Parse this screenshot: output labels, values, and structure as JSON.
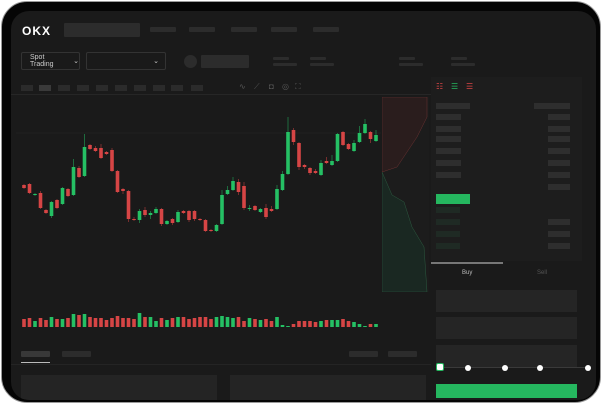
{
  "brand": {
    "logo_text": "OKX"
  },
  "toolbar": {
    "market_selector": "Spot Trading",
    "pair_selector": ""
  },
  "order_panel": {
    "buy_tab": "Buy",
    "sell_tab": "Sell",
    "buy_color": "#25b75f",
    "sell_color": "#d64545",
    "slider_value_percent": 0,
    "slider_stops": [
      0,
      25,
      50,
      75,
      100
    ]
  },
  "icons": [
    "orderbook-both-icon",
    "orderbook-bids-icon",
    "orderbook-asks-icon",
    "chevron-down-icon",
    "indicator-icon",
    "ruler-icon",
    "camera-icon",
    "settings-icon",
    "fullscreen-icon"
  ],
  "chart_data": {
    "type": "candlestick",
    "colors": {
      "up": "#25c064",
      "down": "#d64545"
    },
    "candles": [
      [
        67,
        64,
        68,
        63
      ],
      [
        68,
        59,
        69,
        58
      ],
      [
        57,
        58,
        59,
        56
      ],
      [
        59,
        44,
        61,
        43
      ],
      [
        42,
        39,
        43,
        38
      ],
      [
        36,
        50,
        51,
        34
      ],
      [
        52,
        44,
        53,
        43
      ],
      [
        48,
        64,
        65,
        47
      ],
      [
        63,
        56,
        64,
        55
      ],
      [
        57,
        85,
        93,
        56
      ],
      [
        84,
        75,
        86,
        74
      ],
      [
        76,
        105,
        118,
        75
      ],
      [
        107,
        103,
        108,
        102
      ],
      [
        104,
        101,
        106,
        100
      ],
      [
        104,
        94,
        108,
        93
      ],
      [
        100,
        98,
        101,
        97
      ],
      [
        102,
        81,
        104,
        80
      ],
      [
        81,
        60,
        82,
        59
      ],
      [
        63,
        61,
        64,
        58
      ],
      [
        61,
        33,
        62,
        30
      ],
      [
        33,
        32,
        35,
        31
      ],
      [
        32,
        41,
        43,
        29
      ],
      [
        42,
        37,
        45,
        35
      ],
      [
        37,
        39,
        41,
        33
      ],
      [
        39,
        43,
        45,
        38
      ],
      [
        43,
        28,
        44,
        26
      ],
      [
        28,
        31,
        32,
        27
      ],
      [
        33,
        29,
        34,
        27
      ],
      [
        30,
        40,
        42,
        29
      ],
      [
        41,
        39,
        42,
        38
      ],
      [
        41,
        32,
        42,
        30
      ],
      [
        41,
        33,
        42,
        31
      ],
      [
        33,
        32,
        34,
        31
      ],
      [
        32,
        21,
        33,
        20
      ],
      [
        22,
        21,
        23,
        20
      ],
      [
        21,
        27,
        28,
        20
      ],
      [
        28,
        57,
        62,
        27
      ],
      [
        58,
        62,
        66,
        57
      ],
      [
        62,
        71,
        75,
        61
      ],
      [
        70,
        60,
        73,
        57
      ],
      [
        66,
        44,
        70,
        42
      ],
      [
        43,
        44,
        47,
        41
      ],
      [
        46,
        42,
        47,
        41
      ],
      [
        40,
        43,
        44,
        39
      ],
      [
        44,
        35,
        48,
        33
      ],
      [
        43,
        41,
        46,
        40
      ],
      [
        43,
        63,
        67,
        42
      ],
      [
        62,
        78,
        81,
        61
      ],
      [
        78,
        120,
        135,
        77
      ],
      [
        122,
        110,
        124,
        107
      ],
      [
        109,
        85,
        110,
        82
      ],
      [
        87,
        85,
        88,
        83
      ],
      [
        84,
        79,
        85,
        77
      ],
      [
        81,
        79,
        83,
        78
      ],
      [
        77,
        89,
        92,
        76
      ],
      [
        91,
        89,
        95,
        88
      ],
      [
        87,
        91,
        97,
        86
      ],
      [
        91,
        118,
        119,
        90
      ],
      [
        120,
        107,
        121,
        106
      ],
      [
        108,
        103,
        109,
        102
      ],
      [
        101,
        109,
        112,
        100
      ],
      [
        110,
        119,
        126,
        109
      ],
      [
        119,
        128,
        133,
        118
      ],
      [
        120,
        113,
        121,
        109
      ],
      [
        111,
        117,
        122,
        110
      ]
    ],
    "volume": [
      8,
      9,
      6,
      9,
      7,
      10,
      8,
      8,
      9,
      13,
      12,
      13,
      10,
      9,
      9,
      7,
      9,
      11,
      9,
      9,
      8,
      14,
      10,
      10,
      6,
      9,
      7,
      9,
      10,
      10,
      8,
      9,
      10,
      10,
      8,
      10,
      11,
      10,
      9,
      10,
      6,
      9,
      8,
      7,
      8,
      6,
      10,
      2,
      1,
      3,
      6,
      6,
      6,
      5,
      6,
      7,
      7,
      7,
      8,
      6,
      5,
      3,
      1,
      3,
      3
    ]
  }
}
